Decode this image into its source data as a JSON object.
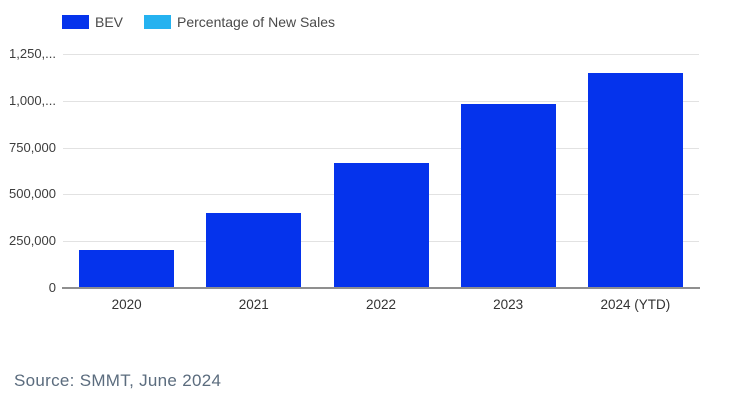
{
  "legend": {
    "items": [
      {
        "name": "BEV",
        "label": "BEV",
        "color": "#0533ec"
      },
      {
        "name": "Percentage of New Sales",
        "label": "Percentage of New Sales",
        "color": "#25b2f0"
      }
    ]
  },
  "chart_data": {
    "type": "bar",
    "title": "",
    "categories": [
      "2020",
      "2021",
      "2022",
      "2023",
      "2024 (YTD)"
    ],
    "series": [
      {
        "name": "BEV",
        "color": "#0533ec",
        "values": [
          200000,
          395000,
          660000,
          975000,
          1145000
        ]
      },
      {
        "name": "Percentage of New Sales",
        "color": "#25b2f0",
        "values": [],
        "note": "legend entry only; series not visible in plot area"
      }
    ],
    "xlabel": "",
    "ylabel": "",
    "ylim": [
      0,
      1250000
    ],
    "grid": true,
    "legend_position": "top-left",
    "y_ticks": [
      {
        "value": 0,
        "label": "0"
      },
      {
        "value": 250000,
        "label": "250,000"
      },
      {
        "value": 500000,
        "label": "500,000"
      },
      {
        "value": 750000,
        "label": "750,000"
      },
      {
        "value": 1000000,
        "label": "1,000,..."
      },
      {
        "value": 1250000,
        "label": "1,250,..."
      }
    ]
  },
  "colors": {
    "bar": "#0533ec",
    "secondary": "#25b2f0",
    "gridline": "#e2e2e2",
    "axis_line": "#8f8f8f",
    "tick_text": "#3d3d3d",
    "legend_text": "#4a4a4a",
    "source_text": "#5b6c7e",
    "background": "#ffffff"
  },
  "source": "Source: SMMT, June 2024"
}
